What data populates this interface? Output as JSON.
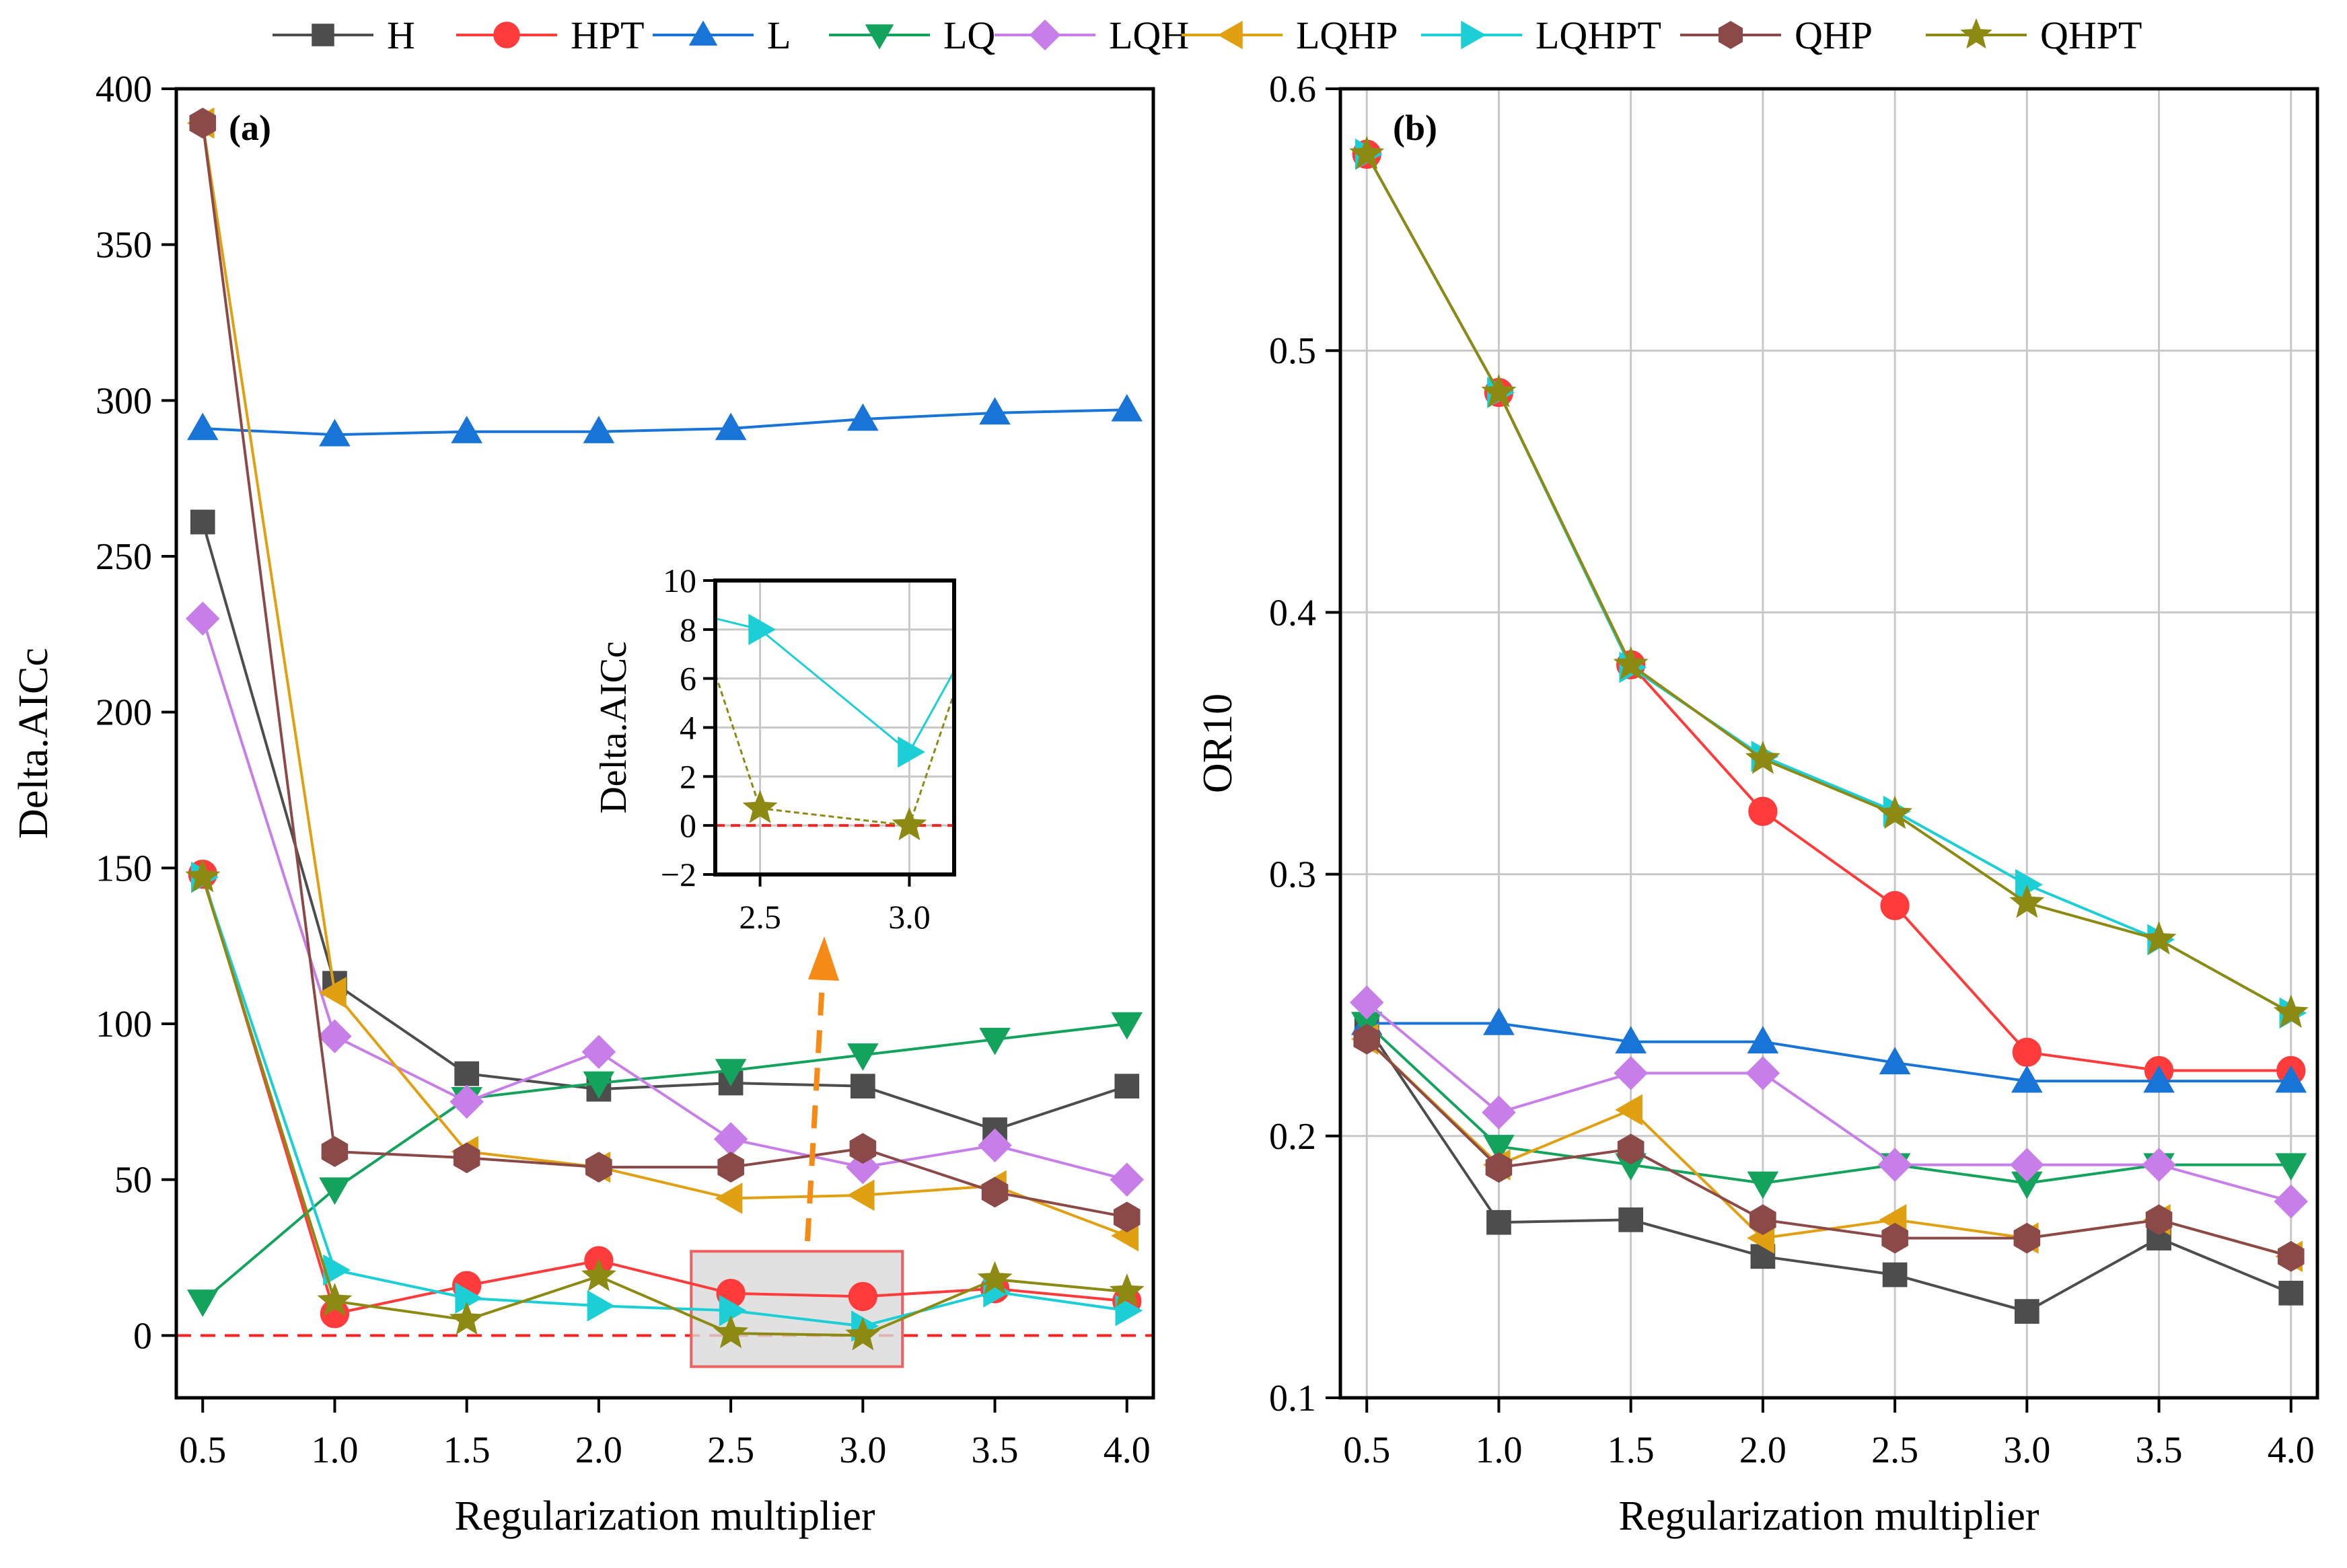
{
  "legend": {
    "entries": [
      {
        "name": "H",
        "color": "#4d4d4d",
        "marker": "square"
      },
      {
        "name": "HPT",
        "color": "#ff3b3b",
        "marker": "circle"
      },
      {
        "name": "L",
        "color": "#1874d6",
        "marker": "triangle-up"
      },
      {
        "name": "LQ",
        "color": "#14a35c",
        "marker": "triangle-down"
      },
      {
        "name": "LQH",
        "color": "#c77ee8",
        "marker": "diamond"
      },
      {
        "name": "LQHP",
        "color": "#e0a012",
        "marker": "triangle-left"
      },
      {
        "name": "LQHPT",
        "color": "#1ccfd6",
        "marker": "triangle-right"
      },
      {
        "name": "QHP",
        "color": "#8b4a48",
        "marker": "hexagon"
      },
      {
        "name": "QHPT",
        "color": "#8c8a12",
        "marker": "star"
      }
    ]
  },
  "chart_data": [
    {
      "type": "line",
      "panel_label": "(a)",
      "title": "",
      "xlabel": "Regularization multiplier",
      "ylabel": "Delta.AICc",
      "x": [
        0.5,
        1.0,
        1.5,
        2.0,
        2.5,
        3.0,
        3.5,
        4.0
      ],
      "x_tick_labels": [
        "0.5",
        "1.0",
        "1.5",
        "2.0",
        "2.5",
        "3.0",
        "3.5",
        "4.0"
      ],
      "xlim": [
        0.4,
        4.1
      ],
      "ylim": [
        -20,
        400
      ],
      "y_ticks": [
        0,
        50,
        100,
        150,
        200,
        250,
        300,
        350,
        400
      ],
      "y_tick_labels": [
        "0",
        "50",
        "100",
        "150",
        "200",
        "250",
        "300",
        "350",
        "400"
      ],
      "grid": false,
      "reference_line": {
        "y": 0,
        "color": "#ff2020",
        "style": "dashed"
      },
      "highlight_box": {
        "x_range": [
          2.35,
          3.15
        ],
        "y_range": [
          -10,
          27
        ],
        "fill": "#d9d9d9",
        "stroke": "#f06060"
      },
      "series": [
        {
          "name": "H",
          "values": [
            261,
            113,
            84,
            79,
            81,
            80,
            66,
            80
          ]
        },
        {
          "name": "HPT",
          "values": [
            148,
            7,
            16,
            24,
            13.5,
            12.5,
            15,
            11
          ]
        },
        {
          "name": "L",
          "values": [
            291,
            289,
            290,
            290,
            291,
            294,
            296,
            297
          ]
        },
        {
          "name": "LQ",
          "values": [
            11,
            47,
            76,
            81,
            85,
            90,
            95,
            100
          ]
        },
        {
          "name": "LQH",
          "values": [
            230,
            96,
            75,
            91,
            63,
            54,
            61,
            50
          ]
        },
        {
          "name": "LQHP",
          "values": [
            389,
            110,
            59,
            54,
            44,
            45,
            48,
            32
          ]
        },
        {
          "name": "LQHPT",
          "values": [
            147,
            21,
            12,
            9.5,
            8,
            3,
            14,
            8
          ]
        },
        {
          "name": "QHP",
          "values": [
            389,
            59,
            57,
            54,
            54,
            60,
            46,
            38
          ]
        },
        {
          "name": "QHPT",
          "values": [
            147,
            11,
            5,
            19,
            0.7,
            0,
            18,
            14
          ]
        }
      ],
      "inset": {
        "ylabel": "Delta.AICc",
        "xlim": [
          2.35,
          3.15
        ],
        "ylim": [
          -2,
          10
        ],
        "x_ticks": [
          2.5,
          3.0
        ],
        "x_tick_labels": [
          "2.5",
          "3.0"
        ],
        "y_ticks": [
          -2,
          0,
          2,
          4,
          6,
          8,
          10
        ],
        "y_tick_labels": [
          "−2",
          "0",
          "2",
          "4",
          "6",
          "8",
          "10"
        ],
        "series": [
          "LQHPT",
          "QHPT"
        ],
        "grid": true
      }
    },
    {
      "type": "line",
      "panel_label": "(b)",
      "title": "",
      "xlabel": "Regularization multiplier",
      "ylabel": "OR10",
      "x": [
        0.5,
        1.0,
        1.5,
        2.0,
        2.5,
        3.0,
        3.5,
        4.0
      ],
      "x_tick_labels": [
        "0.5",
        "1.0",
        "1.5",
        "2.0",
        "2.5",
        "3.0",
        "3.5",
        "4.0"
      ],
      "xlim": [
        0.4,
        4.1
      ],
      "ylim": [
        0.1,
        0.6
      ],
      "y_ticks": [
        0.1,
        0.2,
        0.3,
        0.4,
        0.5,
        0.6
      ],
      "y_tick_labels": [
        "0.1",
        "0.2",
        "0.3",
        "0.4",
        "0.5",
        "0.6"
      ],
      "grid": true,
      "series": [
        {
          "name": "H",
          "values": [
            0.242,
            0.167,
            0.168,
            0.154,
            0.147,
            0.133,
            0.161,
            0.14
          ]
        },
        {
          "name": "HPT",
          "values": [
            0.575,
            0.484,
            0.38,
            0.324,
            0.288,
            0.232,
            0.225,
            0.225
          ]
        },
        {
          "name": "L",
          "values": [
            0.243,
            0.243,
            0.236,
            0.236,
            0.228,
            0.221,
            0.221,
            0.221
          ]
        },
        {
          "name": "LQ",
          "values": [
            0.243,
            0.196,
            0.189,
            0.182,
            0.189,
            0.182,
            0.189,
            0.189
          ]
        },
        {
          "name": "LQH",
          "values": [
            0.251,
            0.209,
            0.224,
            0.224,
            0.189,
            0.189,
            0.189,
            0.175
          ]
        },
        {
          "name": "LQHP",
          "values": [
            0.237,
            0.189,
            0.21,
            0.161,
            0.168,
            0.161,
            0.168,
            0.154
          ]
        },
        {
          "name": "LQHPT",
          "values": [
            0.575,
            0.484,
            0.379,
            0.345,
            0.324,
            0.296,
            0.275,
            0.247
          ]
        },
        {
          "name": "QHP",
          "values": [
            0.237,
            0.188,
            0.195,
            0.168,
            0.161,
            0.161,
            0.168,
            0.154
          ]
        },
        {
          "name": "QHPT",
          "values": [
            0.575,
            0.484,
            0.38,
            0.344,
            0.323,
            0.289,
            0.275,
            0.247
          ]
        }
      ]
    }
  ]
}
